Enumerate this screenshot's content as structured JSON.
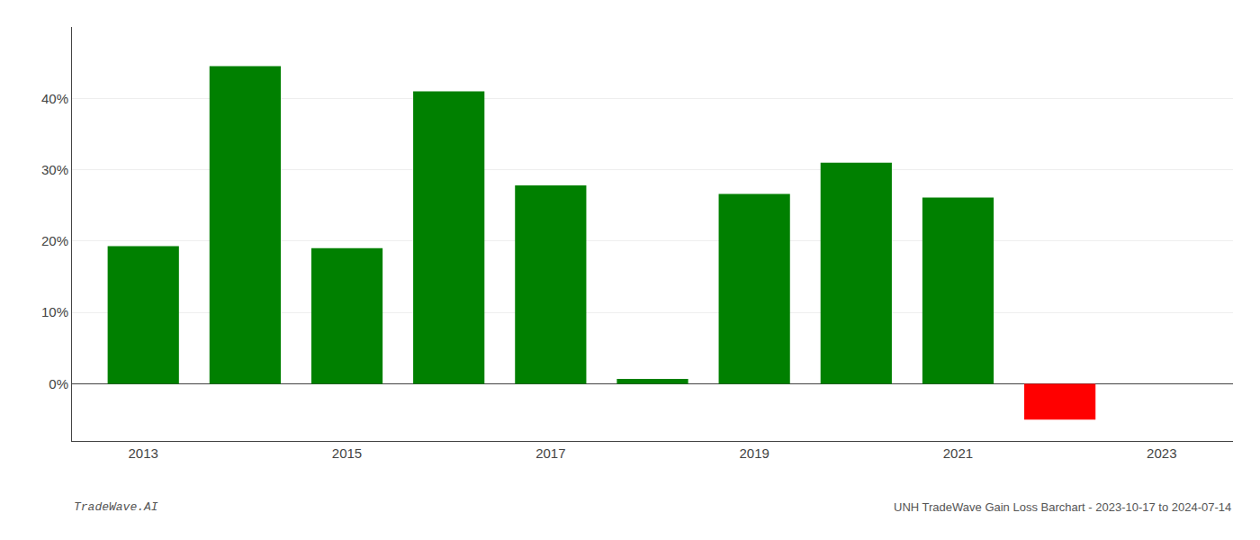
{
  "chart_data": {
    "type": "bar",
    "x": [
      2013,
      2014,
      2015,
      2016,
      2017,
      2018,
      2019,
      2020,
      2021,
      2022
    ],
    "values": [
      19.3,
      44.5,
      19.0,
      41.0,
      27.8,
      0.7,
      26.6,
      31.0,
      26.1,
      -5.0
    ],
    "colors": [
      "#008000",
      "#008000",
      "#008000",
      "#008000",
      "#008000",
      "#008000",
      "#008000",
      "#008000",
      "#008000",
      "#ff0000"
    ],
    "xlim": [
      2012.3,
      2023.7
    ],
    "xticks": [
      2013,
      2015,
      2017,
      2019,
      2021,
      2023
    ],
    "ylim": [
      -8.0,
      50.0
    ],
    "yticks": [
      {
        "value": 0,
        "label": "0%"
      },
      {
        "value": 10,
        "label": "10%"
      },
      {
        "value": 20,
        "label": "20%"
      },
      {
        "value": 30,
        "label": "30%"
      },
      {
        "value": 40,
        "label": "40%"
      }
    ],
    "grid": true,
    "annotations": [
      "TradeWave.AI",
      "UNH TradeWave Gain Loss Barchart - 2023-10-17 to 2024-07-14"
    ]
  }
}
